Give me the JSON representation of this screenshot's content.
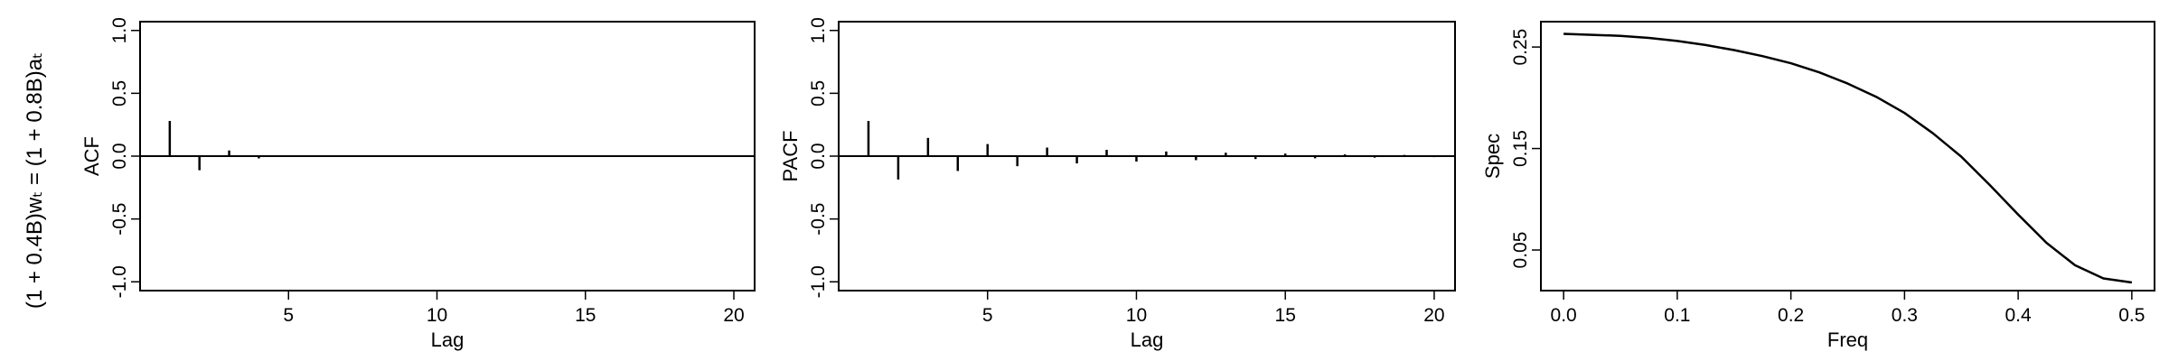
{
  "row_label": "(1 + 0.4B)wₜ = (1 + 0.8B)aₜ",
  "chart_data": [
    {
      "type": "bar",
      "ylabel": "ACF",
      "xlabel": "Lag",
      "xlim": [
        0,
        20.7
      ],
      "ylim": [
        -1.07,
        1.07
      ],
      "xticks": [
        5,
        10,
        15,
        20
      ],
      "yticks": [
        -1.0,
        -0.5,
        0.0,
        0.5,
        1.0
      ],
      "ytick_labels": [
        "-1.0",
        "-0.5",
        "0.0",
        "0.5",
        "1.0"
      ],
      "x": [
        1,
        2,
        3,
        4,
        5
      ],
      "values": [
        0.28,
        -0.112,
        0.045,
        -0.018,
        0.007
      ]
    },
    {
      "type": "bar",
      "ylabel": "PACF",
      "xlabel": "Lag",
      "xlim": [
        0,
        20.7
      ],
      "ylim": [
        -1.07,
        1.07
      ],
      "xticks": [
        5,
        10,
        15,
        20
      ],
      "yticks": [
        -1.0,
        -0.5,
        0.0,
        0.5,
        1.0
      ],
      "ytick_labels": [
        "-1.0",
        "-0.5",
        "0.0",
        "0.5",
        "1.0"
      ],
      "x": [
        1,
        2,
        3,
        4,
        5,
        6,
        7,
        8,
        9,
        10,
        11,
        12,
        13,
        14,
        15,
        16,
        17,
        18,
        19,
        20
      ],
      "values": [
        0.28,
        -0.186,
        0.145,
        -0.118,
        0.096,
        -0.08,
        0.068,
        -0.058,
        0.05,
        -0.043,
        0.037,
        -0.032,
        0.027,
        -0.023,
        0.02,
        -0.017,
        0.014,
        -0.012,
        0.01,
        -0.008
      ]
    },
    {
      "type": "line",
      "ylabel": "Spec",
      "xlabel": "Freq",
      "xlim": [
        -0.02,
        0.52
      ],
      "ylim": [
        0.01,
        0.275
      ],
      "xticks": [
        0.0,
        0.1,
        0.2,
        0.3,
        0.4,
        0.5
      ],
      "xtick_labels": [
        "0.0",
        "0.1",
        "0.2",
        "0.3",
        "0.4",
        "0.5"
      ],
      "yticks": [
        0.05,
        0.15,
        0.25
      ],
      "ytick_labels": [
        "0.05",
        "0.15",
        "0.25"
      ],
      "x": [
        0.0,
        0.025,
        0.05,
        0.075,
        0.1,
        0.125,
        0.15,
        0.175,
        0.2,
        0.225,
        0.25,
        0.275,
        0.3,
        0.325,
        0.35,
        0.375,
        0.4,
        0.425,
        0.45,
        0.475,
        0.5
      ],
      "values": [
        0.263,
        0.262,
        0.261,
        0.259,
        0.256,
        0.252,
        0.247,
        0.241,
        0.234,
        0.225,
        0.214,
        0.201,
        0.185,
        0.165,
        0.142,
        0.114,
        0.085,
        0.057,
        0.035,
        0.022,
        0.018
      ]
    }
  ]
}
